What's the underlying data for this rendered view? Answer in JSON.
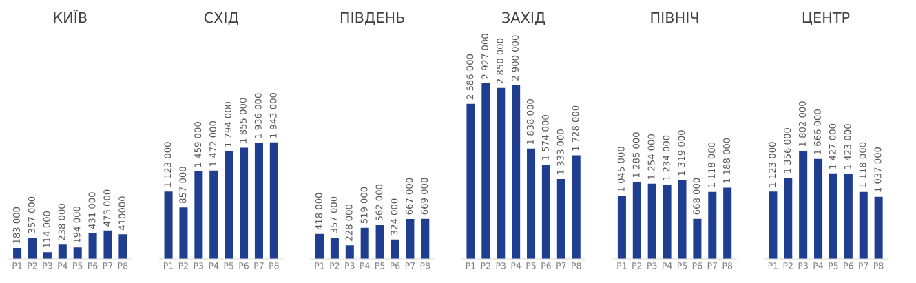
{
  "chart_data": [
    {
      "type": "bar",
      "title": "КИЇВ",
      "categories": [
        "P1",
        "P2",
        "P3",
        "P4",
        "P5",
        "P6",
        "P7",
        "P8"
      ],
      "color": "#203e8f",
      "values": [
        183000,
        357000,
        114000,
        238000,
        194000,
        431000,
        473000,
        410000
      ],
      "value_labels": [
        "183 000",
        "357 000",
        "114 000",
        "238 000",
        "194 000",
        "431 000",
        "473 000",
        "410000"
      ]
    },
    {
      "type": "bar",
      "title": "СХІД",
      "categories": [
        "P1",
        "P2",
        "P3",
        "P4",
        "P5",
        "P6",
        "P7",
        "P8"
      ],
      "color": "#203e8f",
      "values": [
        1123000,
        857000,
        1459000,
        1472000,
        1794000,
        1855000,
        1936000,
        1943000
      ],
      "value_labels": [
        "1 123 000",
        "857 000",
        "1 459 000",
        "1 472 000",
        "1 794 000",
        "1 855 000",
        "1 936 000",
        "1 943 000"
      ]
    },
    {
      "type": "bar",
      "title": "ПІВДЕНЬ",
      "categories": [
        "P1",
        "P2",
        "P3",
        "P4",
        "P5",
        "P6",
        "P7",
        "P8"
      ],
      "color": "#203e8f",
      "values": [
        418000,
        357000,
        228000,
        519000,
        562000,
        324000,
        667000,
        669000
      ],
      "value_labels": [
        "418 000",
        "357 000",
        "228 000",
        "519 000",
        "562 000",
        "324 000",
        "667 000",
        "669 000"
      ]
    },
    {
      "type": "bar",
      "title": "ЗАХІД",
      "categories": [
        "P1",
        "P2",
        "P3",
        "P4",
        "P5",
        "P6",
        "P7",
        "P8"
      ],
      "color": "#203e8f",
      "values": [
        2586000,
        2927000,
        2850000,
        2900000,
        1838000,
        1574000,
        1333000,
        1728000
      ],
      "value_labels": [
        "2 586 000",
        "2 927 000",
        "2 850 000",
        "2 900 000",
        "1 838 000",
        "1 574 000",
        "1 333 000",
        "1 728 000"
      ]
    },
    {
      "type": "bar",
      "title": "ПІВНІЧ",
      "categories": [
        "P1",
        "P2",
        "P3",
        "P4",
        "P5",
        "P6",
        "P7",
        "P8"
      ],
      "color": "#203e8f",
      "values": [
        1045000,
        1285000,
        1254000,
        1234000,
        1319000,
        668000,
        1118000,
        1188000
      ],
      "value_labels": [
        "1 045 000",
        "1 285 000",
        "1 254 000",
        "1 234 000",
        "1 319 000",
        "668 000",
        "1 118 000",
        "1 188 000"
      ]
    },
    {
      "type": "bar",
      "title": "ЦЕНТР",
      "categories": [
        "P1",
        "P2",
        "P3",
        "P4",
        "P5",
        "P6",
        "P7",
        "P8"
      ],
      "color": "#203e8f",
      "values": [
        1123000,
        1356000,
        1802000,
        1666000,
        1427000,
        1423000,
        1118000,
        1037000
      ],
      "value_labels": [
        "1 123 000",
        "1 356 000",
        "1 802 000",
        "1 666 000",
        "1 427 000",
        "1 423 000",
        "1 118 000",
        "1 037 000"
      ]
    }
  ]
}
